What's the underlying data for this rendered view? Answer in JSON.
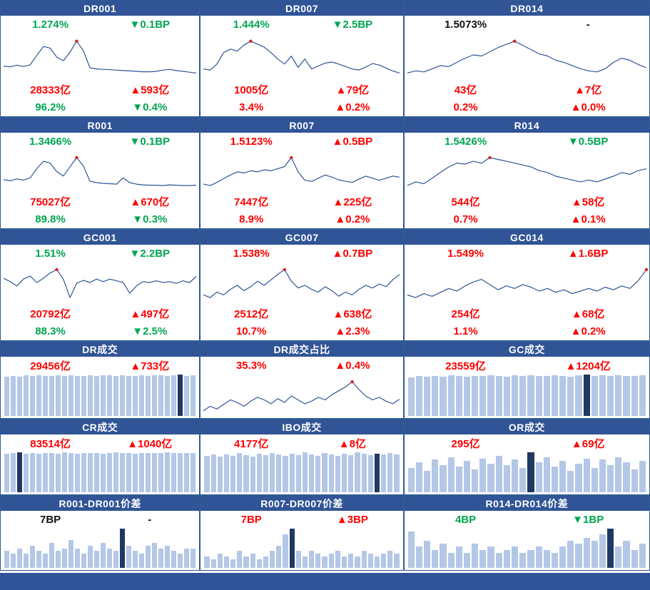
{
  "colors": {
    "header_bg": "#305496",
    "grid_line": "#2F5B93",
    "panel_bg": "#FFFFFF",
    "up": "#FF0000",
    "down": "#00A651",
    "flat": "#111111",
    "line": "#2F5597",
    "dot": "#E02020",
    "bar_light": "#B4C7E7",
    "bar_dark": "#203864"
  },
  "chart_data": [
    {
      "title": "DR001",
      "type": "line",
      "stats": {
        "rate": {
          "value": "1.274%",
          "change": "▼0.1BP",
          "dir": "down"
        },
        "volume": {
          "value": "28333亿",
          "change": "▲593亿",
          "dir": "up"
        },
        "share": {
          "value": "96.2%",
          "change": "▼0.4%",
          "dir": "down"
        }
      },
      "values": [
        1.44,
        1.42,
        1.46,
        1.43,
        1.47,
        1.7,
        1.92,
        1.88,
        1.66,
        1.57,
        1.78,
        2.05,
        1.82,
        1.4,
        1.37,
        1.36,
        1.35,
        1.34,
        1.33,
        1.32,
        1.31,
        1.3,
        1.3,
        1.31,
        1.34,
        1.36,
        1.33,
        1.31,
        1.29,
        1.27
      ]
    },
    {
      "title": "DR007",
      "type": "line",
      "stats": {
        "rate": {
          "value": "1.444%",
          "change": "▼2.5BP",
          "dir": "down"
        },
        "volume": {
          "value": "1005亿",
          "change": "▲79亿",
          "dir": "up"
        },
        "share": {
          "value": "3.4%",
          "change": "▲0.2%",
          "dir": "up"
        }
      },
      "values": [
        1.52,
        1.5,
        1.62,
        1.85,
        1.92,
        1.88,
        2.0,
        2.08,
        2.02,
        1.96,
        1.85,
        1.72,
        1.62,
        1.78,
        1.55,
        1.72,
        1.52,
        1.58,
        1.64,
        1.66,
        1.62,
        1.57,
        1.52,
        1.5,
        1.56,
        1.63,
        1.6,
        1.54,
        1.48,
        1.44
      ]
    },
    {
      "title": "DR014",
      "type": "line",
      "stats": {
        "rate": {
          "value": "1.5073%",
          "change": "-",
          "dir": "flat"
        },
        "volume": {
          "value": "43亿",
          "change": "▲7亿",
          "dir": "up"
        },
        "share": {
          "value": "0.2%",
          "change": "▲0.0%",
          "dir": "up"
        }
      },
      "values": [
        1.56,
        1.58,
        1.57,
        1.6,
        1.63,
        1.62,
        1.66,
        1.7,
        1.73,
        1.72,
        1.76,
        1.8,
        1.83,
        1.86,
        1.82,
        1.78,
        1.74,
        1.72,
        1.68,
        1.66,
        1.63,
        1.6,
        1.58,
        1.57,
        1.6,
        1.66,
        1.7,
        1.68,
        1.64,
        1.61
      ]
    },
    {
      "title": "R001",
      "type": "line",
      "stats": {
        "rate": {
          "value": "1.3466%",
          "change": "▼0.1BP",
          "dir": "down"
        },
        "volume": {
          "value": "75027亿",
          "change": "▲670亿",
          "dir": "up"
        },
        "share": {
          "value": "89.8%",
          "change": "▼0.3%",
          "dir": "down"
        }
      },
      "values": [
        1.5,
        1.47,
        1.52,
        1.49,
        1.55,
        1.8,
        2.0,
        1.95,
        1.72,
        1.6,
        1.85,
        2.1,
        1.88,
        1.46,
        1.42,
        1.4,
        1.39,
        1.38,
        1.55,
        1.42,
        1.38,
        1.36,
        1.35,
        1.35,
        1.34,
        1.36,
        1.35,
        1.34,
        1.34,
        1.35
      ]
    },
    {
      "title": "R007",
      "type": "line",
      "stats": {
        "rate": {
          "value": "1.5123%",
          "change": "▲0.5BP",
          "dir": "up"
        },
        "volume": {
          "value": "7447亿",
          "change": "▲225亿",
          "dir": "up"
        },
        "share": {
          "value": "8.9%",
          "change": "▲0.2%",
          "dir": "up"
        }
      },
      "values": [
        1.55,
        1.52,
        1.58,
        1.65,
        1.72,
        1.78,
        1.76,
        1.8,
        1.78,
        1.82,
        1.8,
        1.84,
        1.88,
        2.05,
        1.78,
        1.62,
        1.6,
        1.66,
        1.72,
        1.68,
        1.63,
        1.6,
        1.58,
        1.64,
        1.7,
        1.66,
        1.62,
        1.66,
        1.7,
        1.68
      ]
    },
    {
      "title": "R014",
      "type": "line",
      "stats": {
        "rate": {
          "value": "1.5426%",
          "change": "▼0.5BP",
          "dir": "down"
        },
        "volume": {
          "value": "544亿",
          "change": "▲58亿",
          "dir": "up"
        },
        "share": {
          "value": "0.7%",
          "change": "▲0.1%",
          "dir": "up"
        }
      },
      "values": [
        1.56,
        1.6,
        1.58,
        1.64,
        1.7,
        1.76,
        1.8,
        1.79,
        1.82,
        1.8,
        1.86,
        1.84,
        1.82,
        1.8,
        1.78,
        1.76,
        1.72,
        1.7,
        1.66,
        1.64,
        1.62,
        1.6,
        1.62,
        1.6,
        1.63,
        1.66,
        1.7,
        1.68,
        1.72,
        1.74
      ]
    },
    {
      "title": "GC001",
      "type": "line",
      "stats": {
        "rate": {
          "value": "1.51%",
          "change": "▼2.2BP",
          "dir": "down"
        },
        "volume": {
          "value": "20792亿",
          "change": "▲497亿",
          "dir": "up"
        },
        "share": {
          "value": "88.3%",
          "change": "▼2.5%",
          "dir": "down"
        }
      },
      "values": [
        1.8,
        1.72,
        1.62,
        1.78,
        1.85,
        1.7,
        1.8,
        1.92,
        2.0,
        1.78,
        1.35,
        1.68,
        1.75,
        1.7,
        1.78,
        1.72,
        1.78,
        1.74,
        1.7,
        1.45,
        1.62,
        1.72,
        1.7,
        1.74,
        1.7,
        1.72,
        1.68,
        1.74,
        1.7,
        1.84
      ]
    },
    {
      "title": "GC007",
      "type": "line",
      "stats": {
        "rate": {
          "value": "1.538%",
          "change": "▲0.7BP",
          "dir": "up"
        },
        "volume": {
          "value": "2512亿",
          "change": "▲638亿",
          "dir": "up"
        },
        "share": {
          "value": "10.7%",
          "change": "▲2.3%",
          "dir": "up"
        }
      },
      "values": [
        1.58,
        1.54,
        1.62,
        1.58,
        1.66,
        1.72,
        1.64,
        1.7,
        1.78,
        1.72,
        1.8,
        1.88,
        1.95,
        1.78,
        1.68,
        1.72,
        1.66,
        1.62,
        1.7,
        1.64,
        1.56,
        1.62,
        1.58,
        1.66,
        1.72,
        1.68,
        1.74,
        1.7,
        1.8,
        1.88
      ]
    },
    {
      "title": "GC014",
      "type": "line",
      "stats": {
        "rate": {
          "value": "1.549%",
          "change": "▲1.6BP",
          "dir": "up"
        },
        "volume": {
          "value": "254亿",
          "change": "▲68亿",
          "dir": "up"
        },
        "share": {
          "value": "1.1%",
          "change": "▲0.2%",
          "dir": "up"
        }
      },
      "values": [
        1.56,
        1.52,
        1.58,
        1.54,
        1.6,
        1.66,
        1.62,
        1.7,
        1.76,
        1.8,
        1.72,
        1.64,
        1.7,
        1.66,
        1.72,
        1.68,
        1.62,
        1.66,
        1.6,
        1.64,
        1.58,
        1.62,
        1.66,
        1.62,
        1.68,
        1.64,
        1.7,
        1.66,
        1.78,
        1.95
      ]
    },
    {
      "title": "DR成交",
      "type": "bar",
      "highlight_index": 27,
      "stats": {
        "main": {
          "value": "29456亿",
          "change": "▲733亿",
          "dir": "up"
        }
      },
      "values": [
        28100,
        28600,
        28200,
        28900,
        28400,
        29000,
        28600,
        28300,
        28800,
        28500,
        29100,
        28700,
        28400,
        29000,
        28600,
        29200,
        28800,
        28500,
        29100,
        28700,
        28300,
        28900,
        28500,
        29100,
        28800,
        28400,
        29000,
        29456,
        28600,
        28900
      ]
    },
    {
      "title": "DR成交占比",
      "type": "line",
      "stats": {
        "main": {
          "value": "35.3%",
          "change": "▲0.4%",
          "dir": "up"
        }
      },
      "values": [
        33.5,
        34.2,
        33.8,
        34.5,
        35.2,
        34.8,
        34.2,
        35.0,
        35.6,
        35.2,
        34.6,
        35.4,
        34.8,
        35.8,
        35.2,
        34.6,
        35.0,
        35.6,
        35.2,
        36.0,
        36.6,
        37.2,
        38.0,
        36.8,
        35.8,
        35.2,
        35.6,
        35.0,
        34.6,
        35.3
      ]
    },
    {
      "title": "GC成交",
      "type": "bar",
      "highlight_index": 22,
      "stats": {
        "main": {
          "value": "23559亿",
          "change": "▲1204亿",
          "dir": "up"
        }
      },
      "values": [
        22100,
        22600,
        22300,
        22800,
        22500,
        23000,
        22700,
        22400,
        22900,
        22600,
        23100,
        22800,
        22500,
        23000,
        22700,
        23200,
        22900,
        22600,
        23100,
        22800,
        22500,
        23000,
        23559,
        22800,
        23100,
        22700,
        23000,
        22600,
        22900,
        23200
      ]
    },
    {
      "title": "CR成交",
      "type": "bar",
      "highlight_index": 2,
      "stats": {
        "main": {
          "value": "83514亿",
          "change": "▲1040亿",
          "dir": "up"
        }
      },
      "values": [
        81000,
        82500,
        84500,
        82000,
        83000,
        81500,
        82800,
        83500,
        82200,
        83800,
        82600,
        81900,
        83200,
        82400,
        83600,
        82000,
        83000,
        84000,
        82500,
        83400,
        82100,
        83700,
        82300,
        83100,
        82700,
        83900,
        82400,
        83300,
        82900,
        83514
      ]
    },
    {
      "title": "IBO成交",
      "type": "bar",
      "highlight_index": 26,
      "stats": {
        "main": {
          "value": "4177亿",
          "change": "▲8亿",
          "dir": "up"
        }
      },
      "values": [
        3900,
        4050,
        3850,
        4100,
        3950,
        4200,
        4000,
        3880,
        4150,
        3980,
        4250,
        4080,
        3900,
        4180,
        4020,
        4300,
        4100,
        3950,
        4220,
        4060,
        3900,
        4150,
        4000,
        4280,
        4120,
        3960,
        4177,
        4050,
        4200,
        4100
      ]
    },
    {
      "title": "OR成交",
      "type": "bar",
      "highlight_index": 15,
      "stats": {
        "main": {
          "value": "295亿",
          "change": "▲69亿",
          "dir": "up"
        }
      },
      "values": [
        180,
        220,
        160,
        240,
        200,
        260,
        190,
        230,
        170,
        250,
        210,
        270,
        200,
        240,
        180,
        295,
        220,
        260,
        190,
        230,
        160,
        210,
        250,
        180,
        240,
        200,
        260,
        220,
        170,
        230
      ]
    },
    {
      "title": "R001-DR001价差",
      "type": "bar",
      "highlight_index": 18,
      "stats": {
        "main": {
          "value": "7BP",
          "change": "-",
          "dir": "flat"
        }
      },
      "values": [
        6,
        5,
        7,
        5,
        8,
        6,
        5,
        9,
        6,
        7,
        10,
        7,
        5,
        8,
        6,
        9,
        7,
        6,
        14,
        8,
        6,
        5,
        8,
        9,
        7,
        8,
        6,
        5,
        7,
        7
      ]
    },
    {
      "title": "R007-DR007价差",
      "type": "bar",
      "highlight_index": 13,
      "stats": {
        "main": {
          "value": "7BP",
          "change": "▲3BP",
          "dir": "up"
        }
      },
      "values": [
        4,
        3,
        5,
        4,
        3,
        6,
        4,
        5,
        3,
        4,
        6,
        8,
        12,
        14,
        6,
        4,
        6,
        5,
        4,
        5,
        6,
        4,
        5,
        4,
        6,
        5,
        4,
        5,
        6,
        5
      ]
    },
    {
      "title": "R014-DR014价差",
      "type": "bar",
      "highlight_index": 25,
      "stats": {
        "main": {
          "value": "4BP",
          "change": "▼1BP",
          "dir": "down"
        }
      },
      "values": [
        12,
        7,
        9,
        6,
        8,
        5,
        7,
        5,
        8,
        6,
        7,
        5,
        6,
        7,
        5,
        6,
        7,
        6,
        5,
        7,
        9,
        8,
        10,
        9,
        11,
        13,
        7,
        9,
        6,
        8
      ]
    }
  ]
}
